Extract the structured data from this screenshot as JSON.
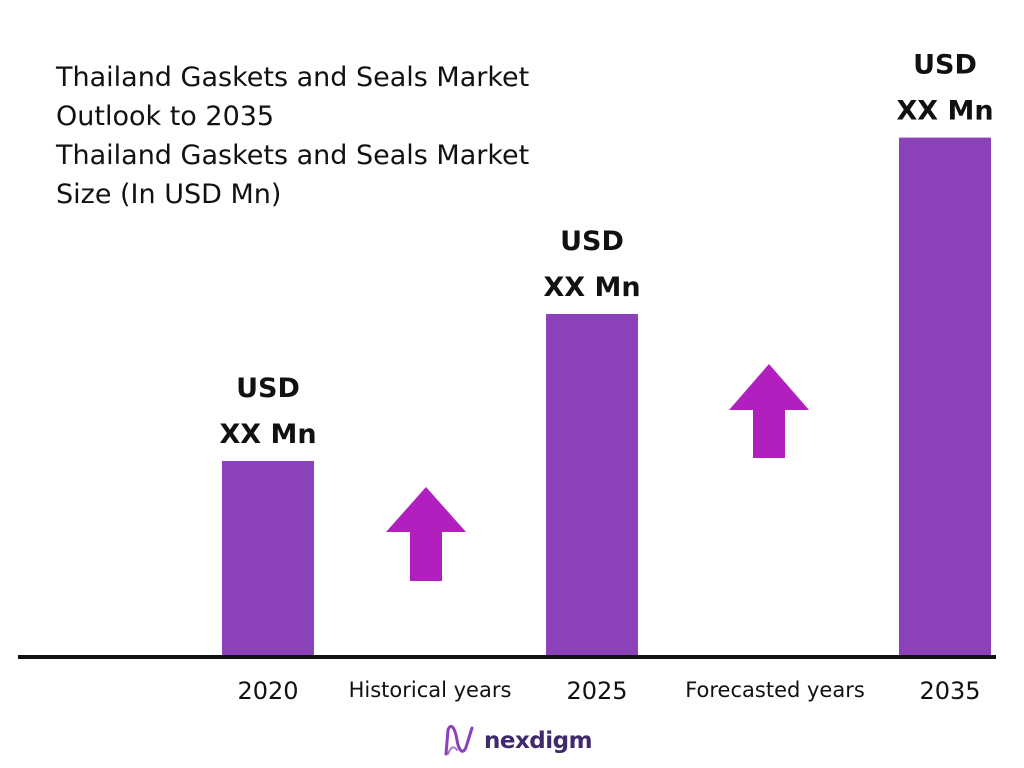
{
  "chart_data": {
    "type": "bar",
    "title_lines": [
      "Thailand Gaskets and Seals Market",
      "Outlook to 2035",
      "Thailand Gaskets and Seals Market",
      "Size (In USD Mn)"
    ],
    "categories": [
      "2020",
      "2025",
      "2035"
    ],
    "values": [
      1.0,
      1.75,
      2.65
    ],
    "value_labels": [
      [
        "USD",
        "XX Mn"
      ],
      [
        "USD",
        "XX Mn"
      ],
      [
        "USD",
        "XX Mn"
      ]
    ],
    "period_labels": [
      "Historical years",
      "Forecasted years"
    ],
    "ylim": [
      0,
      3
    ],
    "bar_color": "#8a41ba",
    "arrow_color": "#b21fbf",
    "axis_color": "#111111",
    "grid": false,
    "legend": "none"
  },
  "brand": {
    "name": "nexdigm",
    "logo_color": "#8a41ba"
  }
}
